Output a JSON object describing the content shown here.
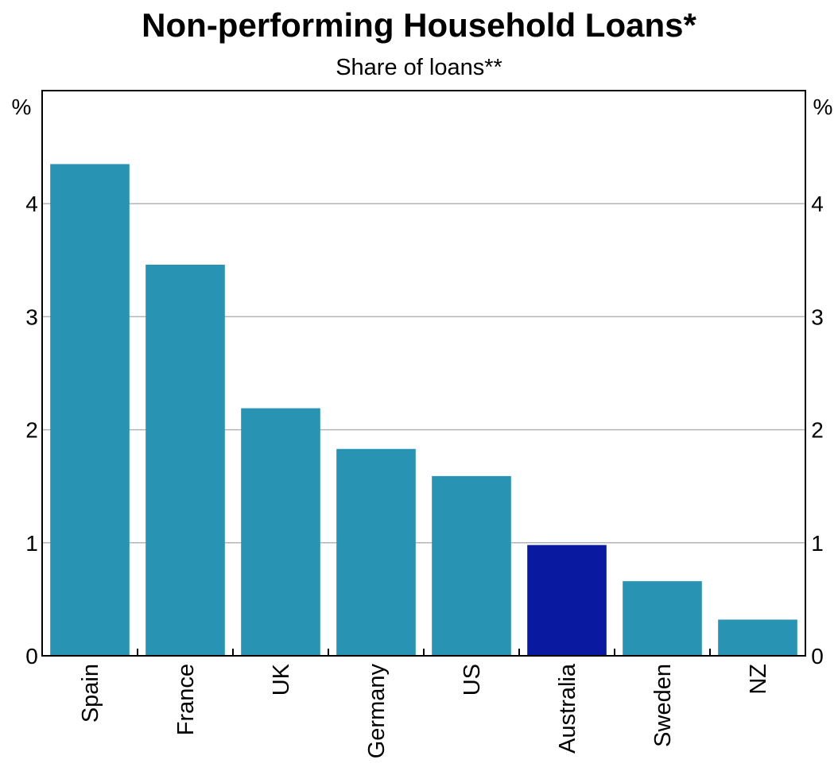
{
  "chart_data": {
    "type": "bar",
    "title": "Non-performing Household Loans*",
    "subtitle": "Share of loans**",
    "y_unit_left": "%",
    "y_unit_right": "%",
    "categories": [
      "Spain",
      "France",
      "UK",
      "Germany",
      "US",
      "Australia",
      "Sweden",
      "NZ"
    ],
    "values": [
      4.35,
      3.46,
      2.19,
      1.83,
      1.59,
      0.98,
      0.66,
      0.32
    ],
    "highlight_category": "Australia",
    "ylim": [
      0,
      5
    ],
    "yticks": [
      0,
      1,
      2,
      3,
      4
    ],
    "grid": true,
    "colors": {
      "bar": "#2893b2",
      "highlight": "#0a1aa0",
      "grid": "#b4b4b4",
      "axis": "#000000"
    }
  }
}
